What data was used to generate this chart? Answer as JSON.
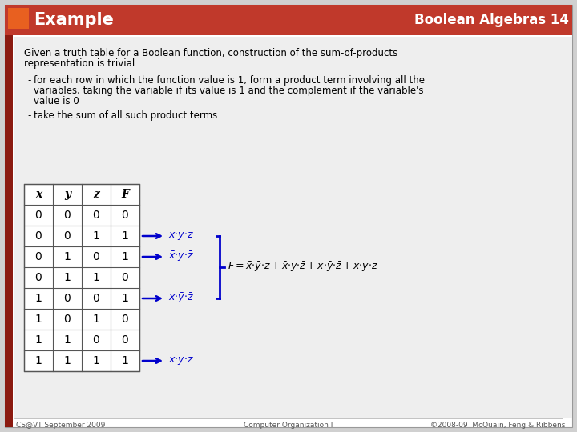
{
  "title_left": "Example",
  "title_right": "Boolean Algebras 14",
  "header_bg": "#c0392b",
  "orange_sq": "#e86020",
  "slide_bg": "#ffffff",
  "content_bg": "#f0f0f0",
  "left_bar_color": "#8b1a10",
  "table_headers": [
    "x",
    "y",
    "z",
    "F"
  ],
  "table_data": [
    [
      0,
      0,
      0,
      0
    ],
    [
      0,
      0,
      1,
      1
    ],
    [
      0,
      1,
      0,
      1
    ],
    [
      0,
      1,
      1,
      0
    ],
    [
      1,
      0,
      0,
      1
    ],
    [
      1,
      0,
      1,
      0
    ],
    [
      1,
      1,
      0,
      0
    ],
    [
      1,
      1,
      1,
      1
    ]
  ],
  "arrow_rows": [
    1,
    2,
    4,
    7
  ],
  "footer_left": "CS@VT September 2009",
  "footer_center": "Computer Organization I",
  "footer_right": "©2008-09  McQuain, Feng & Ribbens"
}
